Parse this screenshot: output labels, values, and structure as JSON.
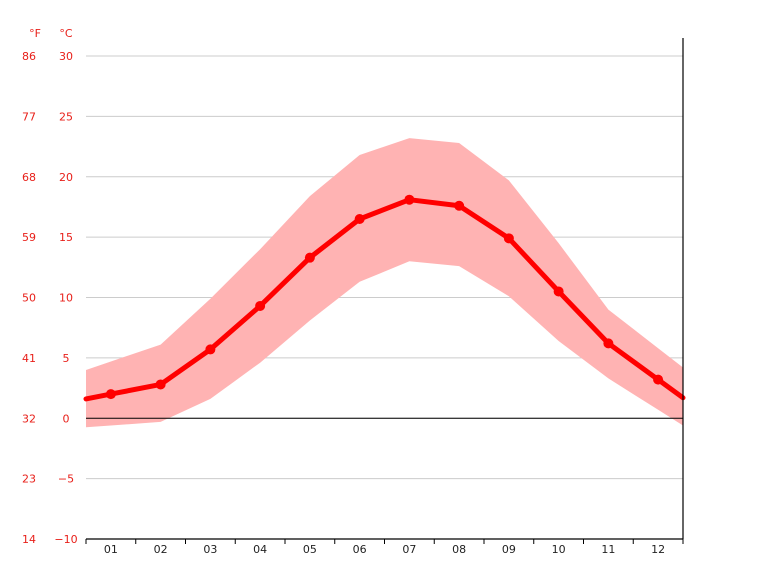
{
  "chart_data": {
    "type": "line",
    "units": {
      "fahrenheit": "°F",
      "celsius": "°C"
    },
    "y_ticks_c": [
      "30",
      "25",
      "20",
      "15",
      "10",
      "5",
      "0",
      "−5",
      "−10"
    ],
    "y_ticks_f": [
      "86",
      "77",
      "68",
      "59",
      "50",
      "41",
      "32",
      "23",
      "14"
    ],
    "ylim_c": [
      -10,
      30
    ],
    "categories": [
      "01",
      "02",
      "03",
      "04",
      "05",
      "06",
      "07",
      "08",
      "09",
      "10",
      "11",
      "12"
    ],
    "series": [
      {
        "role": "mean",
        "values": [
          2.0,
          2.8,
          5.7,
          9.3,
          13.3,
          16.5,
          18.1,
          17.6,
          14.9,
          10.5,
          6.2,
          3.2
        ]
      },
      {
        "role": "max",
        "values": [
          4.7,
          6.1,
          9.9,
          14.0,
          18.4,
          21.8,
          23.2,
          22.8,
          19.7,
          14.5,
          9.0,
          5.8
        ]
      },
      {
        "role": "min",
        "values": [
          -0.6,
          -0.3,
          1.6,
          4.6,
          8.1,
          11.3,
          13.0,
          12.6,
          10.1,
          6.4,
          3.3,
          0.7
        ]
      }
    ],
    "grid": true,
    "colors": {
      "mean_line": "#ff0000",
      "range_band": "#ffb3b3",
      "grid": "#cccccc",
      "zero_line": "#000000",
      "axis": "#000000",
      "tick_text": "#e8201a"
    }
  }
}
